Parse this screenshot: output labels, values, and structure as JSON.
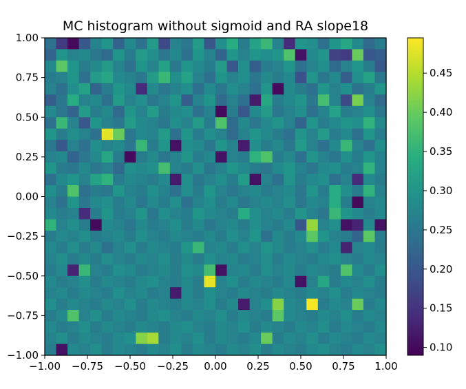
{
  "chart_data": {
    "type": "heatmap",
    "title": "MC histogram without sigmoid and RA slope18",
    "xlabel": "",
    "ylabel": "",
    "xlim": [
      -1.0,
      1.0
    ],
    "ylim": [
      -1.0,
      1.0
    ],
    "grid": false,
    "bins": [
      30,
      28
    ],
    "x_ticks": [
      "−1.00",
      "−0.75",
      "−0.50",
      "−0.25",
      "0.00",
      "0.25",
      "0.50",
      "0.75",
      "1.00"
    ],
    "x_tick_values": [
      -1.0,
      -0.75,
      -0.5,
      -0.25,
      0.0,
      0.25,
      0.5,
      0.75,
      1.0
    ],
    "y_ticks": [
      "−1.00",
      "−0.75",
      "−0.50",
      "−0.25",
      "0.00",
      "0.25",
      "0.50",
      "0.75",
      "1.00"
    ],
    "y_tick_values": [
      -1.0,
      -0.75,
      -0.5,
      -0.25,
      0.0,
      0.25,
      0.5,
      0.75,
      1.0
    ],
    "colorbar": {
      "min": 0.09,
      "max": 0.495,
      "ticks": [
        "0.10",
        "0.15",
        "0.20",
        "0.25",
        "0.30",
        "0.35",
        "0.40",
        "0.45"
      ],
      "tick_values": [
        0.1,
        0.15,
        0.2,
        0.25,
        0.3,
        0.35,
        0.4,
        0.45
      ],
      "colormap": "viridis"
    },
    "z": [
      [
        0.24,
        0.16,
        0.1,
        0.2,
        0.27,
        0.3,
        0.22,
        0.28,
        0.24,
        0.31,
        0.18,
        0.27,
        0.25,
        0.31,
        0.2,
        0.29,
        0.34,
        0.26,
        0.32,
        0.36,
        0.27,
        0.14,
        0.3,
        0.29,
        0.24,
        0.3,
        0.33,
        0.28,
        0.23,
        0.26
      ],
      [
        0.22,
        0.3,
        0.27,
        0.28,
        0.25,
        0.23,
        0.3,
        0.26,
        0.31,
        0.29,
        0.25,
        0.28,
        0.24,
        0.3,
        0.27,
        0.22,
        0.3,
        0.27,
        0.3,
        0.29,
        0.3,
        0.38,
        0.11,
        0.28,
        0.3,
        0.17,
        0.16,
        0.4,
        0.2,
        0.21
      ],
      [
        0.28,
        0.39,
        0.3,
        0.26,
        0.28,
        0.31,
        0.27,
        0.24,
        0.3,
        0.27,
        0.32,
        0.25,
        0.3,
        0.28,
        0.26,
        0.31,
        0.2,
        0.29,
        0.21,
        0.26,
        0.27,
        0.3,
        0.24,
        0.27,
        0.29,
        0.23,
        0.27,
        0.3,
        0.26,
        0.2
      ],
      [
        0.26,
        0.27,
        0.3,
        0.24,
        0.31,
        0.33,
        0.28,
        0.27,
        0.25,
        0.31,
        0.36,
        0.29,
        0.32,
        0.27,
        0.24,
        0.3,
        0.27,
        0.29,
        0.25,
        0.28,
        0.26,
        0.28,
        0.19,
        0.3,
        0.25,
        0.28,
        0.21,
        0.29,
        0.32,
        0.25
      ],
      [
        0.27,
        0.24,
        0.29,
        0.32,
        0.22,
        0.26,
        0.3,
        0.28,
        0.14,
        0.28,
        0.25,
        0.27,
        0.29,
        0.24,
        0.28,
        0.25,
        0.29,
        0.27,
        0.24,
        0.3,
        0.1,
        0.28,
        0.26,
        0.24,
        0.3,
        0.27,
        0.29,
        0.24,
        0.26,
        0.3
      ],
      [
        0.21,
        0.25,
        0.34,
        0.27,
        0.28,
        0.24,
        0.31,
        0.27,
        0.29,
        0.25,
        0.27,
        0.3,
        0.21,
        0.27,
        0.3,
        0.23,
        0.27,
        0.24,
        0.12,
        0.33,
        0.26,
        0.28,
        0.3,
        0.25,
        0.37,
        0.27,
        0.18,
        0.41,
        0.27,
        0.23
      ],
      [
        0.28,
        0.25,
        0.22,
        0.31,
        0.26,
        0.28,
        0.23,
        0.3,
        0.27,
        0.31,
        0.26,
        0.28,
        0.29,
        0.24,
        0.27,
        0.1,
        0.26,
        0.2,
        0.28,
        0.31,
        0.25,
        0.27,
        0.29,
        0.24,
        0.27,
        0.32,
        0.26,
        0.27,
        0.29,
        0.25
      ],
      [
        0.24,
        0.36,
        0.27,
        0.2,
        0.3,
        0.27,
        0.25,
        0.31,
        0.28,
        0.27,
        0.25,
        0.29,
        0.27,
        0.31,
        0.26,
        0.38,
        0.23,
        0.28,
        0.25,
        0.28,
        0.3,
        0.27,
        0.22,
        0.3,
        0.26,
        0.28,
        0.3,
        0.29,
        0.35,
        0.28
      ],
      [
        0.3,
        0.26,
        0.29,
        0.27,
        0.24,
        0.48,
        0.4,
        0.25,
        0.28,
        0.27,
        0.31,
        0.24,
        0.3,
        0.26,
        0.29,
        0.27,
        0.23,
        0.27,
        0.3,
        0.28,
        0.26,
        0.24,
        0.3,
        0.27,
        0.31,
        0.26,
        0.28,
        0.24,
        0.3,
        0.26
      ],
      [
        0.25,
        0.2,
        0.27,
        0.24,
        0.29,
        0.27,
        0.28,
        0.25,
        0.36,
        0.26,
        0.3,
        0.11,
        0.29,
        0.28,
        0.25,
        0.3,
        0.27,
        0.12,
        0.29,
        0.26,
        0.28,
        0.25,
        0.31,
        0.27,
        0.24,
        0.28,
        0.36,
        0.27,
        0.24,
        0.29
      ],
      [
        0.27,
        0.28,
        0.22,
        0.25,
        0.28,
        0.33,
        0.26,
        0.1,
        0.26,
        0.28,
        0.25,
        0.27,
        0.3,
        0.26,
        0.28,
        0.11,
        0.27,
        0.26,
        0.35,
        0.38,
        0.26,
        0.28,
        0.24,
        0.3,
        0.27,
        0.25,
        0.29,
        0.26,
        0.3,
        0.27
      ],
      [
        0.3,
        0.26,
        0.25,
        0.28,
        0.25,
        0.27,
        0.23,
        0.29,
        0.28,
        0.29,
        0.37,
        0.27,
        0.26,
        0.29,
        0.25,
        0.27,
        0.3,
        0.28,
        0.26,
        0.25,
        0.28,
        0.3,
        0.27,
        0.25,
        0.28,
        0.29,
        0.26,
        0.27,
        0.35,
        0.27
      ],
      [
        0.24,
        0.28,
        0.3,
        0.27,
        0.32,
        0.35,
        0.26,
        0.28,
        0.27,
        0.26,
        0.28,
        0.12,
        0.29,
        0.25,
        0.27,
        0.29,
        0.26,
        0.31,
        0.11,
        0.27,
        0.24,
        0.3,
        0.26,
        0.28,
        0.29,
        0.24,
        0.27,
        0.14,
        0.28,
        0.26
      ],
      [
        0.29,
        0.26,
        0.38,
        0.24,
        0.26,
        0.25,
        0.3,
        0.27,
        0.26,
        0.29,
        0.27,
        0.24,
        0.29,
        0.26,
        0.3,
        0.27,
        0.25,
        0.27,
        0.28,
        0.26,
        0.27,
        0.28,
        0.25,
        0.3,
        0.26,
        0.34,
        0.29,
        0.26,
        0.35,
        0.27
      ],
      [
        0.27,
        0.24,
        0.3,
        0.25,
        0.28,
        0.29,
        0.26,
        0.28,
        0.25,
        0.28,
        0.26,
        0.29,
        0.24,
        0.27,
        0.29,
        0.26,
        0.28,
        0.25,
        0.27,
        0.28,
        0.27,
        0.29,
        0.25,
        0.28,
        0.27,
        0.34,
        0.26,
        0.1,
        0.27,
        0.28
      ],
      [
        0.28,
        0.26,
        0.27,
        0.14,
        0.26,
        0.3,
        0.26,
        0.27,
        0.3,
        0.25,
        0.29,
        0.27,
        0.26,
        0.3,
        0.28,
        0.27,
        0.26,
        0.34,
        0.29,
        0.27,
        0.28,
        0.26,
        0.3,
        0.27,
        0.25,
        0.36,
        0.3,
        0.28,
        0.26,
        0.28
      ],
      [
        0.35,
        0.27,
        0.29,
        0.26,
        0.1,
        0.28,
        0.27,
        0.25,
        0.28,
        0.26,
        0.27,
        0.29,
        0.26,
        0.28,
        0.25,
        0.27,
        0.28,
        0.26,
        0.29,
        0.27,
        0.26,
        0.28,
        0.2,
        0.43,
        0.27,
        0.29,
        0.11,
        0.13,
        0.28,
        0.11
      ],
      [
        0.26,
        0.28,
        0.27,
        0.29,
        0.26,
        0.27,
        0.28,
        0.26,
        0.29,
        0.27,
        0.26,
        0.28,
        0.27,
        0.26,
        0.28,
        0.26,
        0.29,
        0.27,
        0.3,
        0.24,
        0.28,
        0.26,
        0.28,
        0.39,
        0.3,
        0.27,
        0.26,
        0.22,
        0.39,
        0.26
      ],
      [
        0.28,
        0.26,
        0.29,
        0.26,
        0.28,
        0.24,
        0.27,
        0.29,
        0.26,
        0.28,
        0.27,
        0.26,
        0.3,
        0.36,
        0.27,
        0.28,
        0.26,
        0.29,
        0.27,
        0.3,
        0.28,
        0.26,
        0.27,
        0.29,
        0.26,
        0.28,
        0.13,
        0.27,
        0.28,
        0.26
      ],
      [
        0.27,
        0.29,
        0.26,
        0.28,
        0.26,
        0.29,
        0.27,
        0.26,
        0.28,
        0.27,
        0.29,
        0.26,
        0.28,
        0.26,
        0.29,
        0.27,
        0.28,
        0.26,
        0.27,
        0.29,
        0.26,
        0.28,
        0.27,
        0.26,
        0.28,
        0.29,
        0.27,
        0.26,
        0.28,
        0.27
      ],
      [
        0.26,
        0.28,
        0.13,
        0.36,
        0.27,
        0.26,
        0.29,
        0.28,
        0.26,
        0.27,
        0.28,
        0.26,
        0.29,
        0.28,
        0.37,
        0.11,
        0.27,
        0.28,
        0.26,
        0.29,
        0.27,
        0.28,
        0.26,
        0.28,
        0.27,
        0.26,
        0.38,
        0.28,
        0.26,
        0.29
      ],
      [
        0.28,
        0.26,
        0.27,
        0.29,
        0.26,
        0.28,
        0.27,
        0.26,
        0.28,
        0.29,
        0.27,
        0.26,
        0.28,
        0.26,
        0.48,
        0.27,
        0.29,
        0.26,
        0.28,
        0.27,
        0.26,
        0.28,
        0.11,
        0.27,
        0.33,
        0.26,
        0.28,
        0.27,
        0.29,
        0.26
      ],
      [
        0.27,
        0.28,
        0.26,
        0.28,
        0.27,
        0.26,
        0.29,
        0.27,
        0.28,
        0.26,
        0.27,
        0.12,
        0.28,
        0.26,
        0.29,
        0.27,
        0.26,
        0.28,
        0.27,
        0.26,
        0.28,
        0.27,
        0.26,
        0.28,
        0.27,
        0.29,
        0.26,
        0.28,
        0.27,
        0.26
      ],
      [
        0.29,
        0.26,
        0.28,
        0.27,
        0.26,
        0.28,
        0.27,
        0.29,
        0.26,
        0.28,
        0.27,
        0.26,
        0.28,
        0.27,
        0.29,
        0.26,
        0.28,
        0.12,
        0.27,
        0.29,
        0.42,
        0.28,
        0.27,
        0.49,
        0.26,
        0.28,
        0.27,
        0.4,
        0.26,
        0.28
      ],
      [
        0.26,
        0.28,
        0.38,
        0.27,
        0.29,
        0.26,
        0.28,
        0.27,
        0.26,
        0.28,
        0.29,
        0.27,
        0.26,
        0.28,
        0.27,
        0.29,
        0.26,
        0.28,
        0.27,
        0.26,
        0.39,
        0.28,
        0.27,
        0.26,
        0.28,
        0.27,
        0.29,
        0.26,
        0.28,
        0.27
      ],
      [
        0.28,
        0.26,
        0.27,
        0.29,
        0.26,
        0.28,
        0.27,
        0.26,
        0.28,
        0.27,
        0.26,
        0.28,
        0.29,
        0.27,
        0.26,
        0.28,
        0.27,
        0.29,
        0.26,
        0.28,
        0.27,
        0.26,
        0.28,
        0.27,
        0.29,
        0.26,
        0.28,
        0.27,
        0.26,
        0.28
      ],
      [
        0.27,
        0.29,
        0.26,
        0.28,
        0.27,
        0.26,
        0.28,
        0.29,
        0.42,
        0.44,
        0.26,
        0.28,
        0.27,
        0.29,
        0.26,
        0.28,
        0.27,
        0.26,
        0.28,
        0.4,
        0.26,
        0.28,
        0.27,
        0.29,
        0.26,
        0.28,
        0.27,
        0.26,
        0.28,
        0.27
      ],
      [
        0.26,
        0.11,
        0.28,
        0.27,
        0.29,
        0.26,
        0.28,
        0.27,
        0.26,
        0.28,
        0.27,
        0.29,
        0.26,
        0.28,
        0.27,
        0.26,
        0.28,
        0.27,
        0.29,
        0.26,
        0.28,
        0.27,
        0.26,
        0.28,
        0.29,
        0.27,
        0.26,
        0.28,
        0.27,
        0.29
      ]
    ]
  }
}
